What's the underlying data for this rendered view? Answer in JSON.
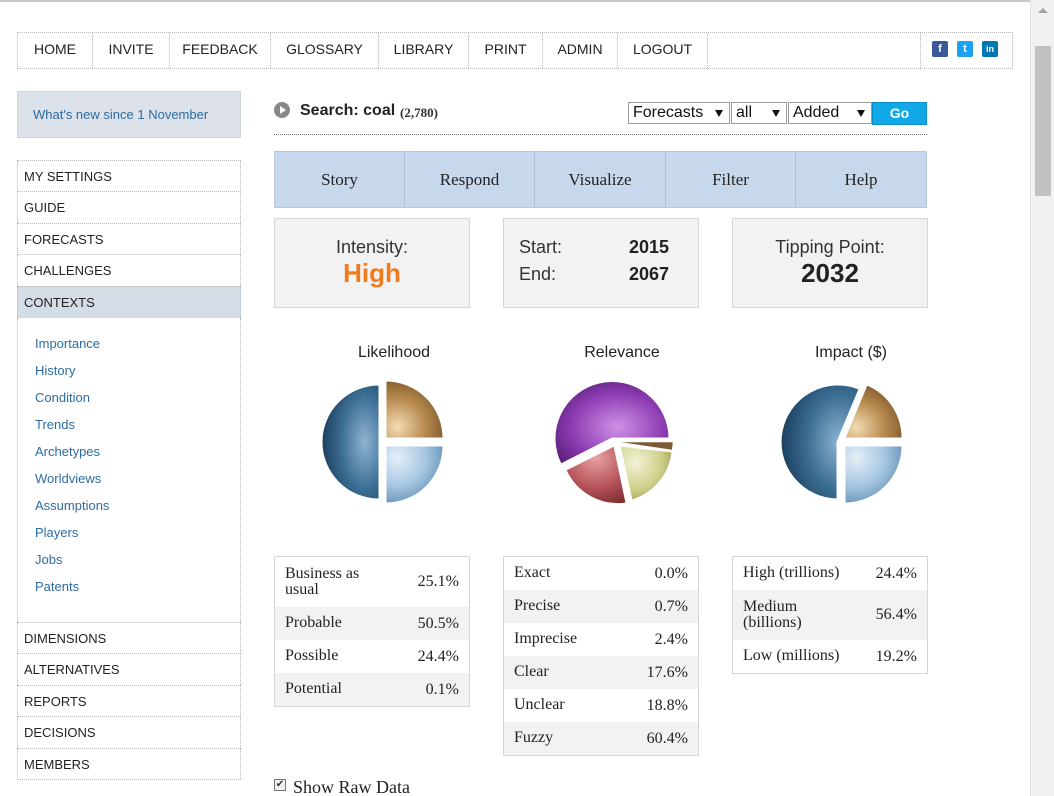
{
  "nav": {
    "items": [
      "HOME",
      "INVITE",
      "FEEDBACK",
      "GLOSSARY",
      "LIBRARY",
      "PRINT",
      "ADMIN",
      "LOGOUT"
    ],
    "social": [
      {
        "name": "facebook-icon",
        "glyph": "f",
        "color": "#3b5998"
      },
      {
        "name": "twitter-icon",
        "glyph": "t",
        "color": "#1da1f2"
      },
      {
        "name": "linkedin-icon",
        "glyph": "in",
        "color": "#0077b5"
      }
    ]
  },
  "sidebar": {
    "whats_new": "What's new since 1 November",
    "top_items": [
      "MY SETTINGS",
      "GUIDE",
      "FORECASTS",
      "CHALLENGES",
      "CONTEXTS"
    ],
    "active": "CONTEXTS",
    "sub_items": [
      "Importance",
      "History",
      "Condition",
      "Trends",
      "Archetypes",
      "Worldviews",
      "Assumptions",
      "Players",
      "Jobs",
      "Patents"
    ],
    "bottom_items": [
      "DIMENSIONS",
      "ALTERNATIVES",
      "REPORTS",
      "DECISIONS",
      "MEMBERS"
    ]
  },
  "search": {
    "label": "Search: coal",
    "count": "(2,780)",
    "filter1": "Forecasts",
    "filter2": "all",
    "filter3": "Added",
    "go": "Go"
  },
  "tabs": [
    "Story",
    "Respond",
    "Visualize",
    "Filter",
    "Help"
  ],
  "stats": {
    "intensity_label": "Intensity:",
    "intensity_value": "High",
    "intensity_color": "#f07a1c",
    "start_label": "Start:",
    "start_value": "2015",
    "end_label": "End:",
    "end_value": "2067",
    "tipping_label": "Tipping Point:",
    "tipping_value": "2032"
  },
  "charts": [
    {
      "title": "Likelihood",
      "rows": [
        {
          "label": "Business as usual",
          "value": "25.1%"
        },
        {
          "label": "Probable",
          "value": "50.5%"
        },
        {
          "label": "Possible",
          "value": "24.4%"
        },
        {
          "label": "Potential",
          "value": "0.1%"
        }
      ]
    },
    {
      "title": "Relevance",
      "rows": [
        {
          "label": "Exact",
          "value": "0.0%"
        },
        {
          "label": "Precise",
          "value": "0.7%"
        },
        {
          "label": "Imprecise",
          "value": "2.4%"
        },
        {
          "label": "Clear",
          "value": "17.6%"
        },
        {
          "label": "Unclear",
          "value": "18.8%"
        },
        {
          "label": "Fuzzy",
          "value": "60.4%"
        }
      ]
    },
    {
      "title": "Impact ($)",
      "rows": [
        {
          "label": "High (trillions)",
          "value": "24.4%"
        },
        {
          "label": "Medium (billions)",
          "value": "56.4%"
        },
        {
          "label": "Low (millions)",
          "value": "19.2%"
        }
      ]
    }
  ],
  "show_raw": "Show Raw Data"
}
